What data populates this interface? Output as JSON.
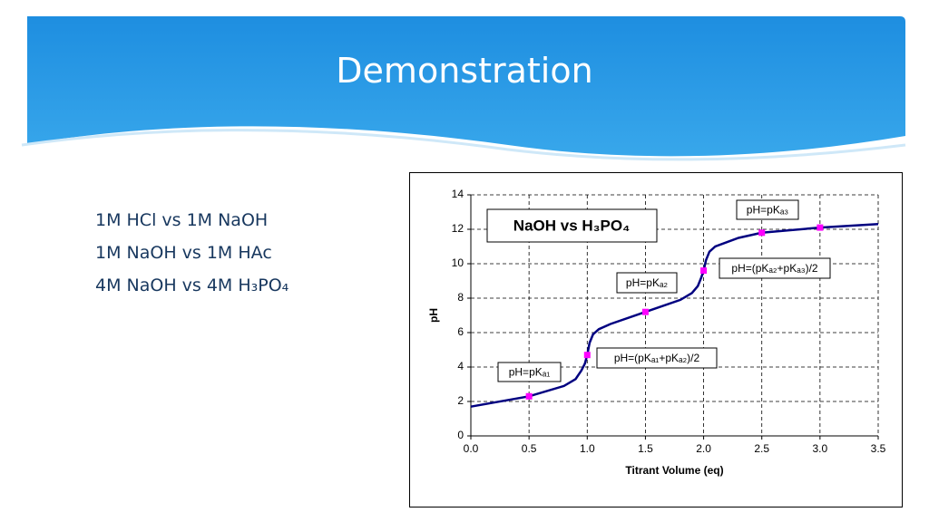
{
  "slide_title": "Demonstration",
  "bullets": [
    "1M HCl vs 1M NaOH",
    "1M NaOH vs 1M HAc",
    "4M NaOH vs 4M H₃PO₄"
  ],
  "chart_data": {
    "type": "line",
    "title": "NaOH vs H₃PO₄",
    "x_label": "Titrant Volume (eq)",
    "y_label": "pH",
    "xlim": [
      0,
      3.5
    ],
    "ylim": [
      0,
      14
    ],
    "xticks": [
      {
        "value": 0,
        "label": "0.0"
      },
      0.5,
      {
        "value": 1,
        "label": "1.0"
      },
      1.5,
      {
        "value": 2,
        "label": "2.0"
      },
      2.5,
      {
        "value": 3,
        "label": "3.0"
      },
      3.5
    ],
    "yticks": [
      0,
      2,
      4,
      6,
      8,
      10,
      12,
      14
    ],
    "grid": true,
    "series": [
      {
        "color": "#000080",
        "style": "line",
        "x": [
          0,
          0.5,
          0.8,
          0.9,
          0.95,
          0.98,
          1.0,
          1.02,
          1.05,
          1.1,
          1.2,
          1.5,
          1.8,
          1.9,
          1.95,
          1.98,
          2.0,
          2.02,
          2.05,
          2.1,
          2.3,
          2.5,
          3.0,
          3.5
        ],
        "values": [
          1.7,
          2.3,
          2.9,
          3.3,
          3.8,
          4.2,
          4.7,
          5.4,
          5.9,
          6.2,
          6.5,
          7.2,
          7.9,
          8.3,
          8.7,
          9.2,
          9.6,
          10.2,
          10.7,
          11.0,
          11.5,
          11.8,
          12.1,
          12.3
        ]
      },
      {
        "color": "#ff00ff",
        "style": "points",
        "x": [
          0.5,
          1.0,
          1.5,
          2.0,
          2.5,
          3.0
        ],
        "values": [
          2.3,
          4.7,
          7.2,
          9.6,
          11.8,
          12.1
        ]
      }
    ],
    "annotations": [
      "pH=pKₐ₁",
      "pH=(pKₐ₁+pKₐ₂)/2",
      "pH=pKₐ₂",
      "pH=(pKₐ₂+pKₐ₃)/2",
      "pH=pKₐ₃"
    ]
  }
}
